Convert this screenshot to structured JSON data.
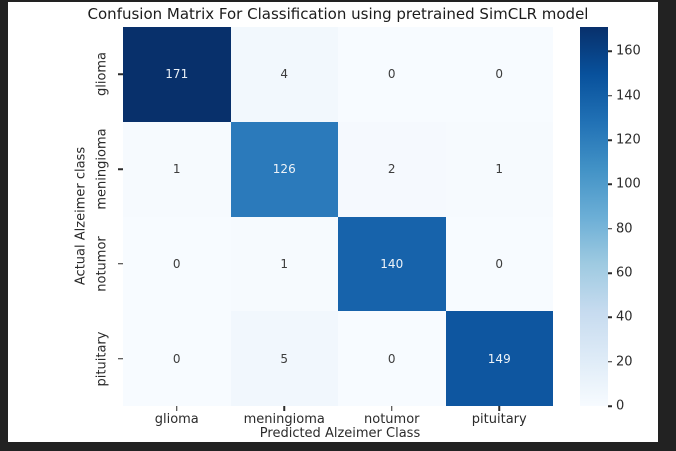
{
  "window": {
    "frame_color": "#222222",
    "figure_background": "#ffffff"
  },
  "chart_data": {
    "type": "heatmap",
    "title": "Confusion Matrix For Classification using pretrained SimCLR model",
    "xlabel": "Predicted Alzeimer Class",
    "ylabel": "Actual Alzeimer class",
    "x_categories": [
      "glioma",
      "meningioma",
      "notumor",
      "pituitary"
    ],
    "y_categories": [
      "glioma",
      "meningioma",
      "notumor",
      "pituitary"
    ],
    "matrix": [
      [
        171,
        4,
        0,
        0
      ],
      [
        1,
        126,
        2,
        1
      ],
      [
        0,
        1,
        140,
        0
      ],
      [
        0,
        5,
        0,
        149
      ]
    ],
    "colormap": "Blues",
    "vmin": 0,
    "vmax": 171,
    "grid": false,
    "legend_position": "right-colorbar",
    "cell_colors": [
      [
        "#08306b",
        "#f2f8fd",
        "#f7fbff",
        "#f7fbff"
      ],
      [
        "#f6fafe",
        "#2b7abb",
        "#f5f9fe",
        "#f6fafe"
      ],
      [
        "#f7fbff",
        "#f6fafe",
        "#1763ab",
        "#f7fbff"
      ],
      [
        "#f7fbff",
        "#f1f7fd",
        "#f7fbff",
        "#0e56a0"
      ]
    ],
    "cell_text_colors": [
      [
        "#e9eff6",
        "#3d3d3d",
        "#3d3d3d",
        "#3d3d3d"
      ],
      [
        "#3d3d3d",
        "#eef3f8",
        "#3d3d3d",
        "#3d3d3d"
      ],
      [
        "#3d3d3d",
        "#3d3d3d",
        "#eef3f8",
        "#3d3d3d"
      ],
      [
        "#3d3d3d",
        "#3d3d3d",
        "#3d3d3d",
        "#eef3f8"
      ]
    ],
    "colorbar": {
      "ticks": [
        0,
        20,
        40,
        60,
        80,
        100,
        120,
        140,
        160
      ],
      "gradient_stops": [
        {
          "pos": 0,
          "color": "#08306b"
        },
        {
          "pos": 12.5,
          "color": "#08519c"
        },
        {
          "pos": 25,
          "color": "#2171b5"
        },
        {
          "pos": 37.5,
          "color": "#4292c6"
        },
        {
          "pos": 50,
          "color": "#6baed6"
        },
        {
          "pos": 62.5,
          "color": "#9ecae1"
        },
        {
          "pos": 75,
          "color": "#c6dbef"
        },
        {
          "pos": 87.5,
          "color": "#deebf7"
        },
        {
          "pos": 100,
          "color": "#f7fbff"
        }
      ]
    }
  }
}
